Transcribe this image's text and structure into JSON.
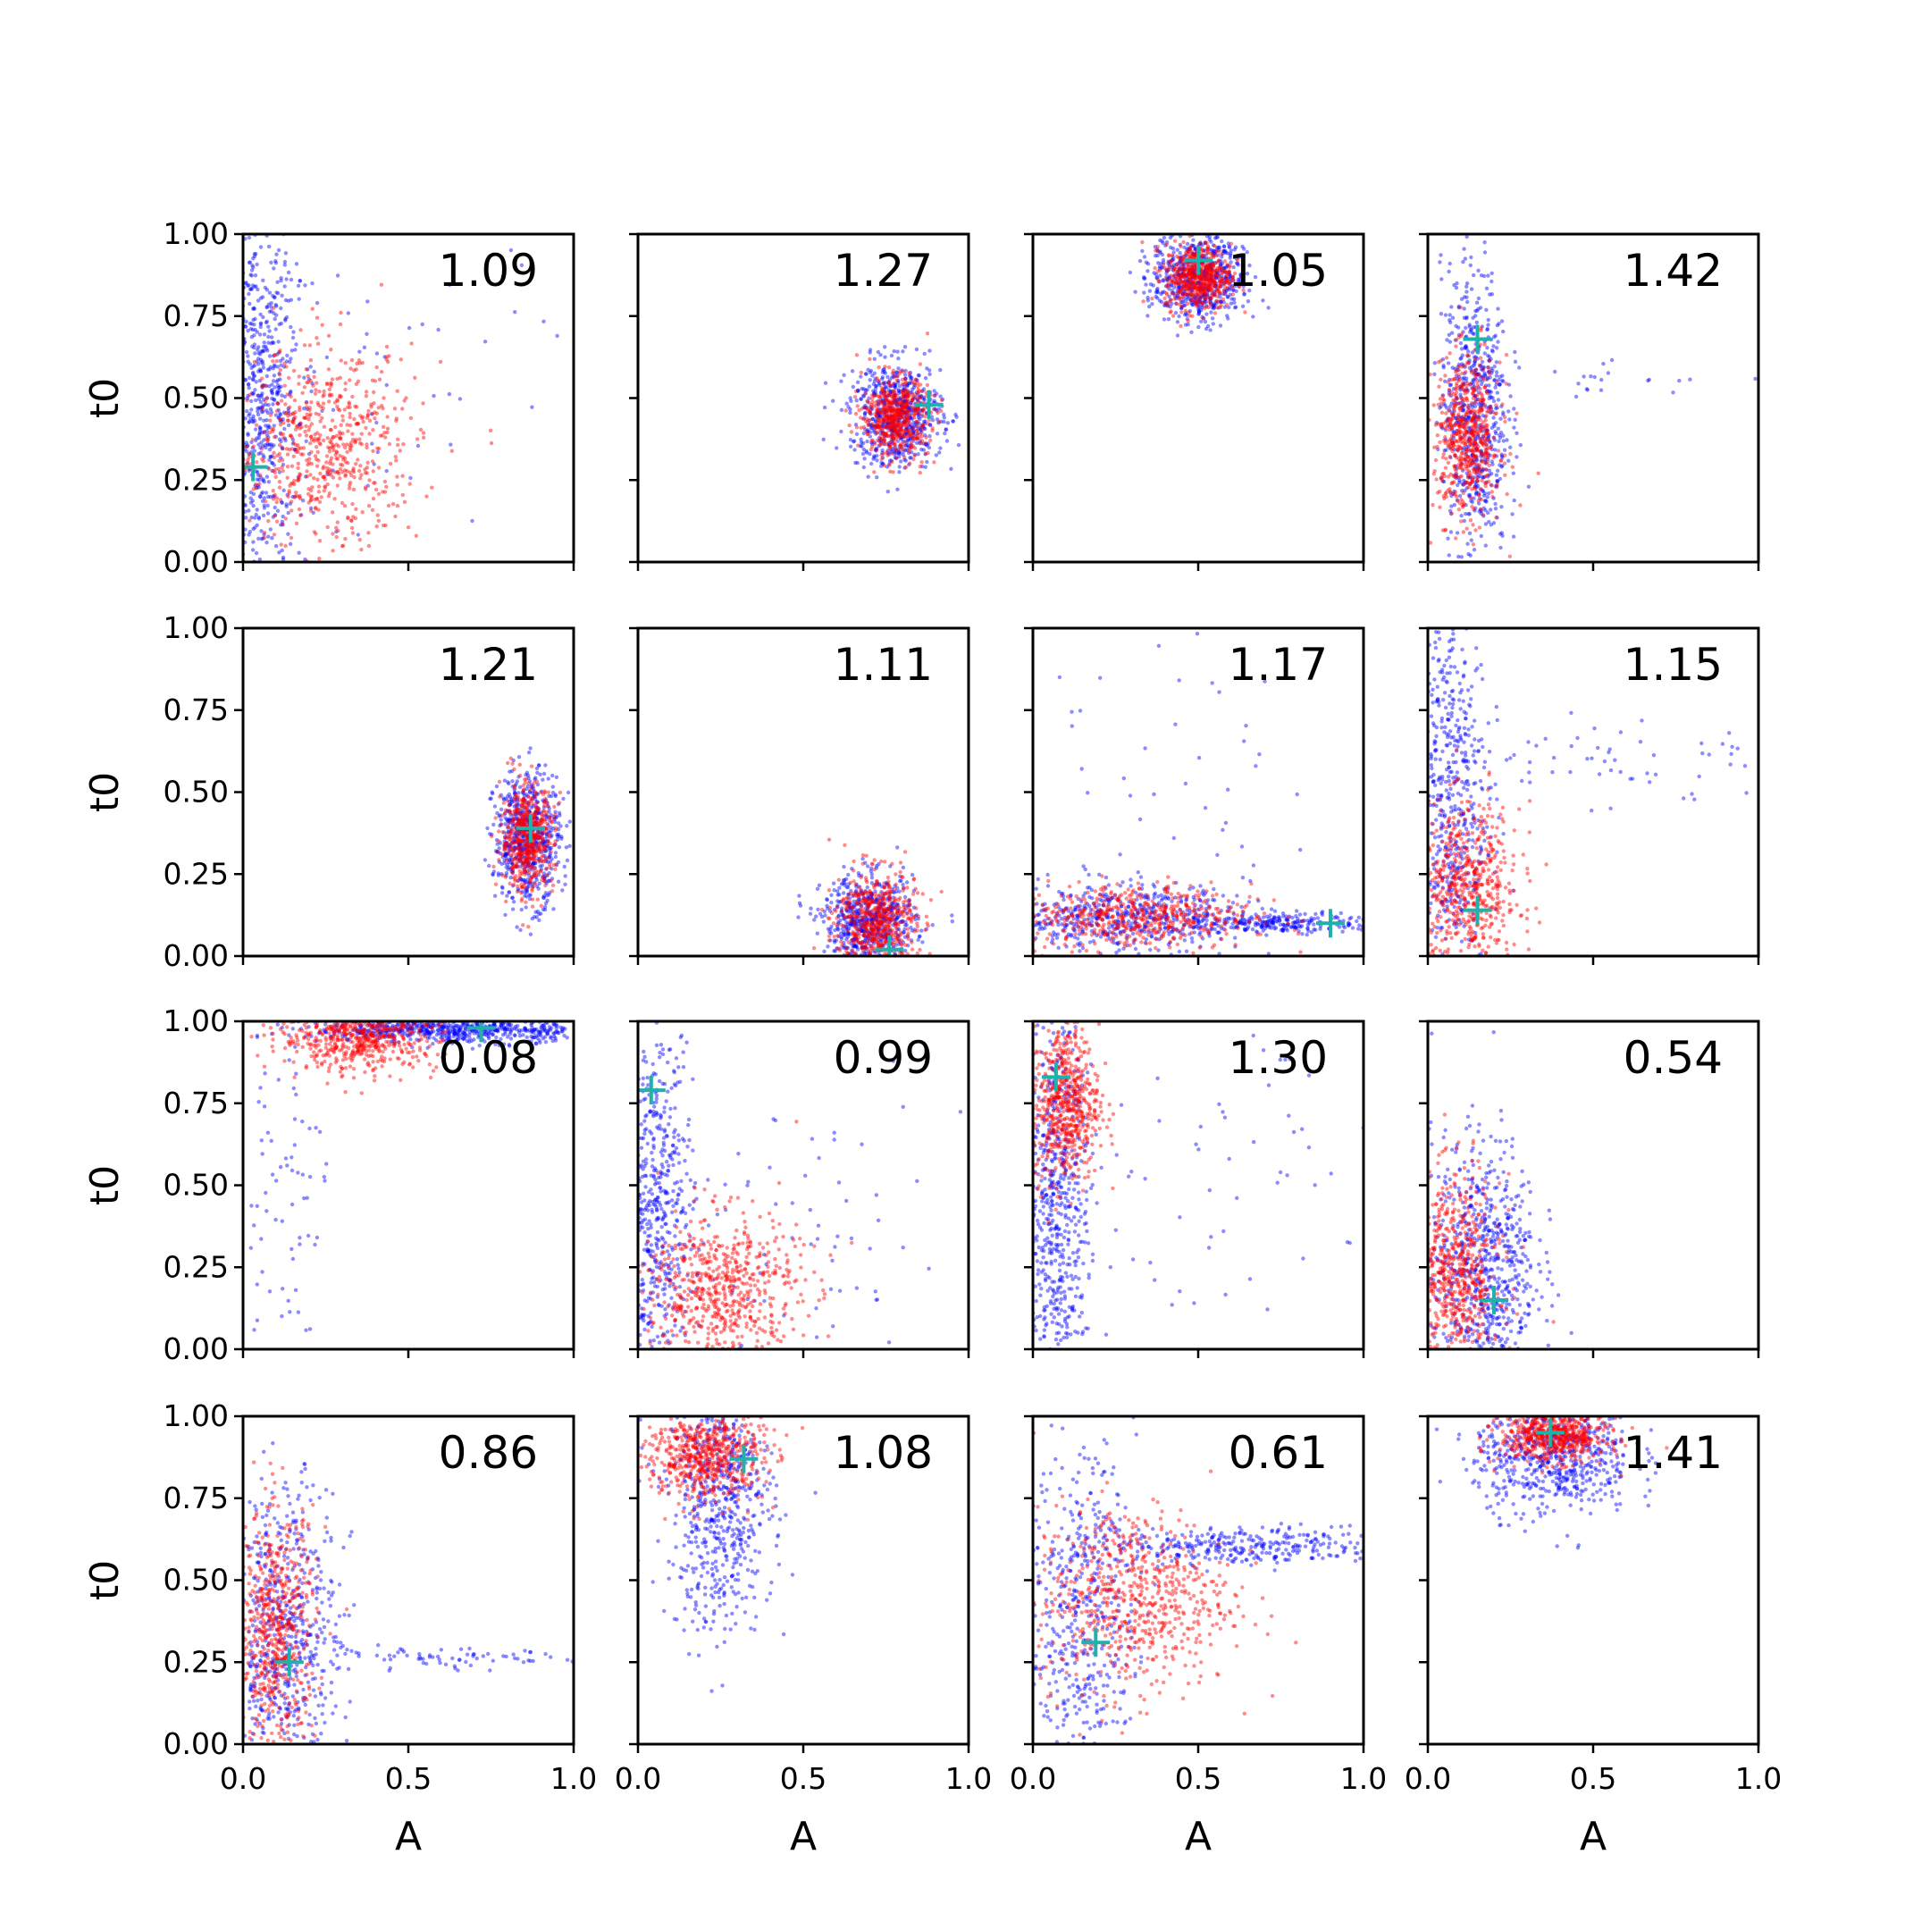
{
  "chart_data": {
    "type": "scatter",
    "layout": "4x4 grid of scatter panels",
    "xlabel": "A",
    "ylabel": "t0",
    "xlim": [
      0.0,
      1.0
    ],
    "ylim": [
      0.0,
      1.0
    ],
    "x_ticks": [
      "0.0",
      "0.5",
      "1.0"
    ],
    "y_ticks": [
      "0.00",
      "0.25",
      "0.50",
      "0.75",
      "1.00"
    ],
    "series_colors": {
      "samples_a": "#0000ff",
      "samples_b": "#ff0000",
      "true_value_marker": "#20b2aa"
    },
    "grid": false,
    "panels": [
      {
        "value_label": "1.09",
        "truth": [
          0.03,
          0.29
        ],
        "blue": [
          {
            "cx": 0.05,
            "cy": 0.5,
            "sx": 0.06,
            "sy": 0.3,
            "n": 700,
            "r": 0
          },
          {
            "cx": 0.4,
            "cy": 0.5,
            "sx": 0.3,
            "sy": 0.3,
            "n": 70,
            "r": 0
          }
        ],
        "red": [
          {
            "cx": 0.25,
            "cy": 0.35,
            "sx": 0.14,
            "sy": 0.15,
            "n": 650,
            "r": 0
          }
        ]
      },
      {
        "value_label": "1.27",
        "truth": [
          0.88,
          0.48
        ],
        "blue": [
          {
            "cx": 0.78,
            "cy": 0.45,
            "sx": 0.07,
            "sy": 0.08,
            "n": 650,
            "r": 0
          }
        ],
        "red": [
          {
            "cx": 0.78,
            "cy": 0.44,
            "sx": 0.05,
            "sy": 0.06,
            "n": 550,
            "r": 0
          }
        ]
      },
      {
        "value_label": "1.05",
        "truth": [
          0.5,
          0.92
        ],
        "blue": [
          {
            "cx": 0.5,
            "cy": 0.87,
            "sx": 0.07,
            "sy": 0.07,
            "n": 650,
            "r": 0
          }
        ],
        "red": [
          {
            "cx": 0.5,
            "cy": 0.87,
            "sx": 0.05,
            "sy": 0.05,
            "n": 550,
            "r": 0
          }
        ]
      },
      {
        "value_label": "1.42",
        "truth": [
          0.15,
          0.68
        ],
        "blue": [
          {
            "cx": 0.14,
            "cy": 0.45,
            "sx": 0.05,
            "sy": 0.22,
            "n": 650,
            "r": 0
          },
          {
            "cx": 0.4,
            "cy": 0.55,
            "sx": 0.25,
            "sy": 0.04,
            "n": 30,
            "r": 0
          }
        ],
        "red": [
          {
            "cx": 0.12,
            "cy": 0.38,
            "sx": 0.05,
            "sy": 0.12,
            "n": 600,
            "r": 0
          }
        ]
      },
      {
        "value_label": "1.21",
        "truth": [
          0.87,
          0.39
        ],
        "blue": [
          {
            "cx": 0.86,
            "cy": 0.36,
            "sx": 0.05,
            "sy": 0.1,
            "n": 650,
            "r": 0
          }
        ],
        "red": [
          {
            "cx": 0.86,
            "cy": 0.36,
            "sx": 0.04,
            "sy": 0.08,
            "n": 550,
            "r": 0
          }
        ]
      },
      {
        "value_label": "1.11",
        "truth": [
          0.76,
          0.02
        ],
        "blue": [
          {
            "cx": 0.7,
            "cy": 0.1,
            "sx": 0.07,
            "sy": 0.07,
            "n": 650,
            "r": 0
          }
        ],
        "red": [
          {
            "cx": 0.72,
            "cy": 0.1,
            "sx": 0.06,
            "sy": 0.08,
            "n": 600,
            "r": 0
          }
        ]
      },
      {
        "value_label": "1.17",
        "truth": [
          0.9,
          0.1
        ],
        "blue": [
          {
            "cx": 0.25,
            "cy": 0.12,
            "sx": 0.2,
            "sy": 0.05,
            "n": 550,
            "r": 0
          },
          {
            "cx": 0.75,
            "cy": 0.1,
            "sx": 0.15,
            "sy": 0.015,
            "n": 250,
            "r": 0
          },
          {
            "cx": 0.35,
            "cy": 0.5,
            "sx": 0.3,
            "sy": 0.3,
            "n": 60,
            "r": 0
          }
        ],
        "red": [
          {
            "cx": 0.3,
            "cy": 0.12,
            "sx": 0.18,
            "sy": 0.05,
            "n": 550,
            "r": 0
          }
        ]
      },
      {
        "value_label": "1.15",
        "truth": [
          0.15,
          0.14
        ],
        "blue": [
          {
            "cx": 0.06,
            "cy": 0.5,
            "sx": 0.06,
            "sy": 0.3,
            "n": 600,
            "r": 0
          },
          {
            "cx": 0.55,
            "cy": 0.6,
            "sx": 0.25,
            "sy": 0.08,
            "n": 60,
            "r": 0
          }
        ],
        "red": [
          {
            "cx": 0.12,
            "cy": 0.2,
            "sx": 0.08,
            "sy": 0.13,
            "n": 600,
            "r": 0
          }
        ]
      },
      {
        "value_label": "0.08",
        "truth": [
          0.72,
          0.98
        ],
        "blue": [
          {
            "cx": 0.65,
            "cy": 0.975,
            "sx": 0.22,
            "sy": 0.02,
            "n": 700,
            "r": 0
          },
          {
            "cx": 0.12,
            "cy": 0.5,
            "sx": 0.07,
            "sy": 0.25,
            "n": 70,
            "r": 0
          }
        ],
        "red": [
          {
            "cx": 0.35,
            "cy": 0.95,
            "sx": 0.12,
            "sy": 0.05,
            "n": 600,
            "r": 0
          }
        ]
      },
      {
        "value_label": "0.99",
        "truth": [
          0.04,
          0.79
        ],
        "blue": [
          {
            "cx": 0.05,
            "cy": 0.4,
            "sx": 0.06,
            "sy": 0.3,
            "n": 650,
            "r": 0
          },
          {
            "cx": 0.4,
            "cy": 0.3,
            "sx": 0.3,
            "sy": 0.25,
            "n": 90,
            "r": 0
          }
        ],
        "red": [
          {
            "cx": 0.25,
            "cy": 0.18,
            "sx": 0.12,
            "sy": 0.12,
            "n": 650,
            "r": 0
          }
        ]
      },
      {
        "value_label": "1.30",
        "truth": [
          0.07,
          0.83
        ],
        "blue": [
          {
            "cx": 0.07,
            "cy": 0.45,
            "sx": 0.05,
            "sy": 0.3,
            "n": 650,
            "r": 0
          },
          {
            "cx": 0.5,
            "cy": 0.5,
            "sx": 0.3,
            "sy": 0.3,
            "n": 70,
            "r": 0
          }
        ],
        "red": [
          {
            "cx": 0.1,
            "cy": 0.75,
            "sx": 0.05,
            "sy": 0.12,
            "n": 600,
            "r": 0
          }
        ]
      },
      {
        "value_label": "0.54",
        "truth": [
          0.2,
          0.15
        ],
        "blue": [
          {
            "cx": 0.17,
            "cy": 0.25,
            "sx": 0.08,
            "sy": 0.2,
            "n": 700,
            "r": 0
          }
        ],
        "red": [
          {
            "cx": 0.08,
            "cy": 0.22,
            "sx": 0.07,
            "sy": 0.15,
            "n": 650,
            "r": 0
          }
        ]
      },
      {
        "value_label": "0.86",
        "truth": [
          0.14,
          0.25
        ],
        "blue": [
          {
            "cx": 0.13,
            "cy": 0.3,
            "sx": 0.08,
            "sy": 0.25,
            "n": 650,
            "r": 0
          },
          {
            "cx": 0.55,
            "cy": 0.26,
            "sx": 0.25,
            "sy": 0.015,
            "n": 80,
            "r": 0
          }
        ],
        "red": [
          {
            "cx": 0.1,
            "cy": 0.35,
            "sx": 0.06,
            "sy": 0.18,
            "n": 600,
            "r": 0
          }
        ]
      },
      {
        "value_label": "1.08",
        "truth": [
          0.32,
          0.87
        ],
        "blue": [
          {
            "cx": 0.25,
            "cy": 0.75,
            "sx": 0.08,
            "sy": 0.2,
            "n": 650,
            "r": 0
          }
        ],
        "red": [
          {
            "cx": 0.2,
            "cy": 0.88,
            "sx": 0.09,
            "sy": 0.07,
            "n": 600,
            "r": 0
          }
        ]
      },
      {
        "value_label": "0.61",
        "truth": [
          0.19,
          0.31
        ],
        "blue": [
          {
            "cx": 0.15,
            "cy": 0.4,
            "sx": 0.08,
            "sy": 0.25,
            "n": 450,
            "r": 0
          },
          {
            "cx": 0.6,
            "cy": 0.6,
            "sx": 0.25,
            "sy": 0.03,
            "n": 350,
            "r": 0
          }
        ],
        "red": [
          {
            "cx": 0.3,
            "cy": 0.45,
            "sx": 0.15,
            "sy": 0.14,
            "n": 650,
            "r": 0
          }
        ]
      },
      {
        "value_label": "1.41",
        "truth": [
          0.37,
          0.95
        ],
        "blue": [
          {
            "cx": 0.38,
            "cy": 0.88,
            "sx": 0.12,
            "sy": 0.09,
            "n": 650,
            "r": 0
          }
        ],
        "red": [
          {
            "cx": 0.38,
            "cy": 0.94,
            "sx": 0.08,
            "sy": 0.04,
            "n": 600,
            "r": 0
          }
        ]
      }
    ]
  }
}
